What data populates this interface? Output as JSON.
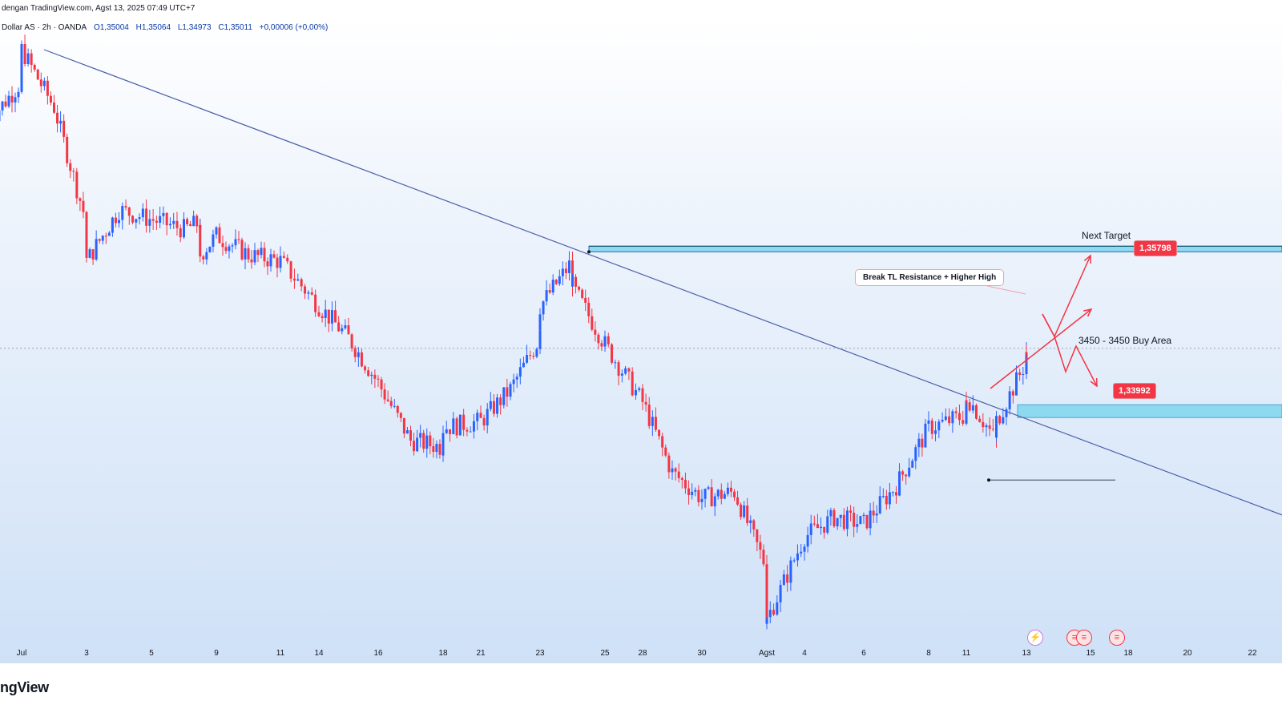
{
  "header": {
    "published": "dengan TradingView.com, Agst 13, 2025 07:49 UTC+7"
  },
  "symbol": {
    "name": "Dollar AS · 2h · OANDA",
    "open": "O1,35004",
    "high": "H1,35064",
    "low": "L1,34973",
    "close": "C1,35011",
    "change": "+0,00006 (+0,00%)"
  },
  "annotations": {
    "next_target": "Next Target",
    "target_price": "1,35798",
    "break_note": "Break TL Resistance + Higher High",
    "buy_area": "3450 - 3450 Buy Area",
    "support_price": "1,33992"
  },
  "events": {
    "icon1": "lightning-icon",
    "icon2": "flag-icon",
    "icon3": "flag-icon"
  },
  "footer": {
    "brand": "ngView"
  },
  "colors": {
    "bull": "#2962ff",
    "bear": "#f23645",
    "zone": "#7fd6ef",
    "trendline": "#4a5fa8",
    "arrow": "#f23645"
  },
  "chart_data": {
    "type": "candlestick",
    "timeframe": "2h",
    "x_ticks": [
      "Jul",
      "3",
      "5",
      "9",
      "11",
      "14",
      "16",
      "18",
      "21",
      "23",
      "25",
      "28",
      "30",
      "Agst",
      "4",
      "6",
      "8",
      "11",
      "13",
      "15",
      "18",
      "20",
      "22"
    ],
    "ylim": [
      1.327,
      1.376
    ],
    "levels": {
      "next_target": 1.35798,
      "current_dotted": 1.3502,
      "buy_zone": [
        1.3448,
        1.3458
      ],
      "support": 1.33992
    },
    "trendline": {
      "from": {
        "date": "Jul 1",
        "price": 1.3735
      },
      "to": {
        "date": "Agst 22",
        "price": 1.3372
      }
    },
    "close_path": [
      [
        "Jun 30",
        1.368
      ],
      [
        "Jul 1",
        1.371
      ],
      [
        "Jul 1",
        1.3735
      ],
      [
        "Jul 2",
        1.369
      ],
      [
        "Jul 3",
        1.36
      ],
      [
        "Jul 3",
        1.357
      ],
      [
        "Jul 4",
        1.361
      ],
      [
        "Jul 7",
        1.3595
      ],
      [
        "Jul 8",
        1.36
      ],
      [
        "Jul 8",
        1.3575
      ],
      [
        "Jul 9",
        1.359
      ],
      [
        "Jul 10",
        1.3575
      ],
      [
        "Jul 11",
        1.357
      ],
      [
        "Jul 14",
        1.3535
      ],
      [
        "Jul 15",
        1.351
      ],
      [
        "Jul 16",
        1.3475
      ],
      [
        "Jul 17",
        1.343
      ],
      [
        "Jul 18",
        1.3425
      ],
      [
        "Jul 18",
        1.344
      ],
      [
        "Jul 21",
        1.3445
      ],
      [
        "Jul 22",
        1.347
      ],
      [
        "Jul 23",
        1.351
      ],
      [
        "Jul 23",
        1.3535
      ],
      [
        "Jul 24",
        1.357
      ],
      [
        "Jul 24",
        1.355
      ],
      [
        "Jul 25",
        1.3505
      ],
      [
        "Jul 28",
        1.346
      ],
      [
        "Jul 29",
        1.3405
      ],
      [
        "Jul 30",
        1.3385
      ],
      [
        "Jul 31",
        1.339
      ],
      [
        "Aug 1",
        1.333
      ],
      [
        "Aug 1",
        1.3295
      ],
      [
        "Aug 1",
        1.329
      ],
      [
        "Aug 4",
        1.3355
      ],
      [
        "Aug 5",
        1.337
      ],
      [
        "Aug 6",
        1.3365
      ],
      [
        "Aug 7",
        1.3395
      ],
      [
        "Aug 8",
        1.344
      ],
      [
        "Aug 11",
        1.345
      ],
      [
        "Aug 11",
        1.3465
      ],
      [
        "Aug 12",
        1.343
      ],
      [
        "Aug 12",
        1.3445
      ],
      [
        "Aug 13",
        1.3492
      ],
      [
        "Aug 13",
        1.35
      ]
    ]
  }
}
